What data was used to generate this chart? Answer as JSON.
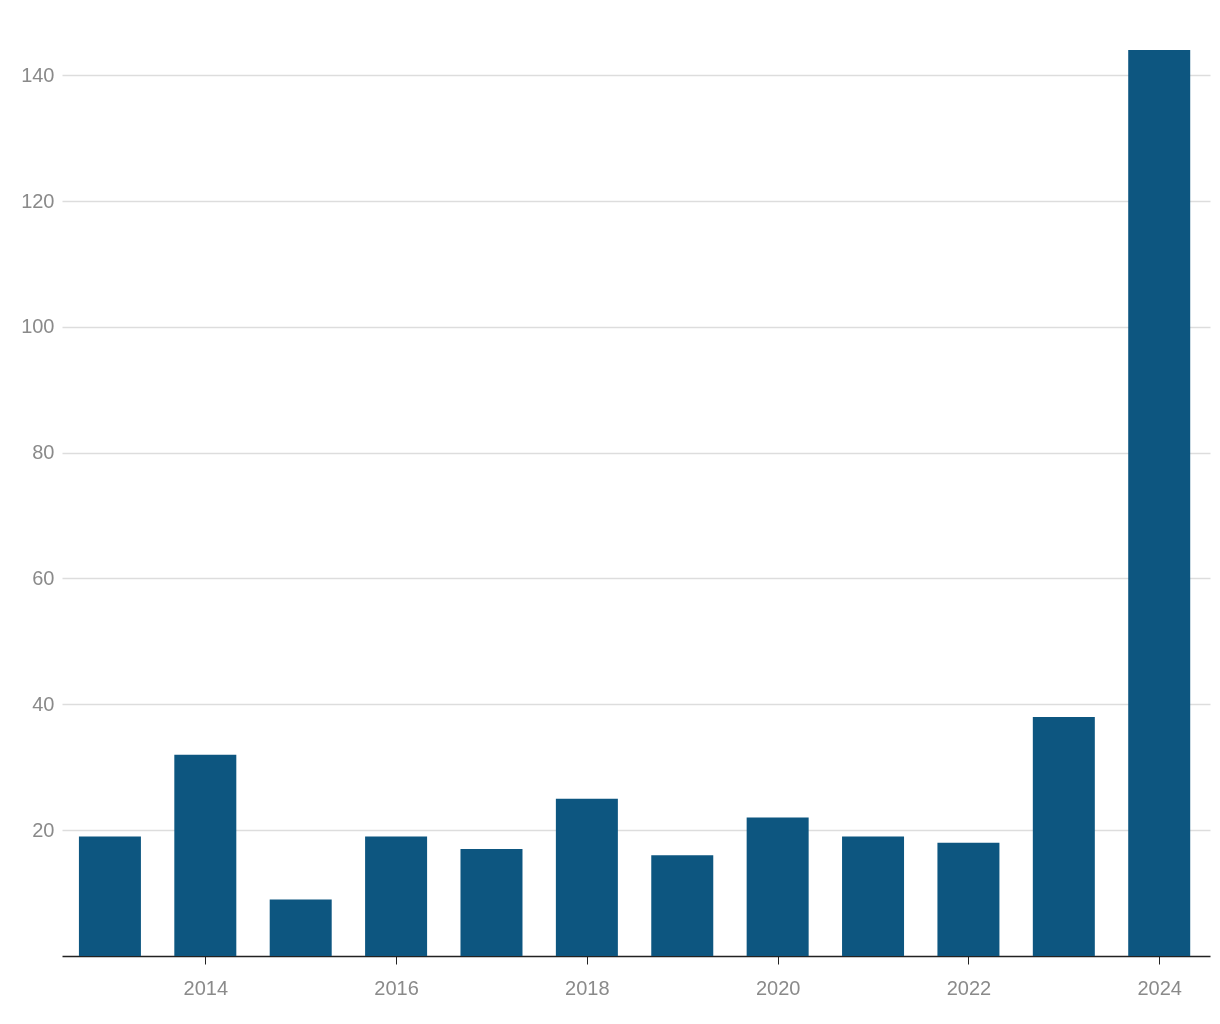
{
  "chart_data": {
    "type": "bar",
    "x": [
      2013,
      2014,
      2015,
      2016,
      2017,
      2018,
      2019,
      2020,
      2021,
      2022,
      2023,
      2024
    ],
    "values": [
      19,
      32,
      9,
      19,
      17,
      25,
      16,
      22,
      19,
      18,
      38,
      144
    ],
    "color": "#0d5680",
    "xlim": [
      2012.55,
      2024.48
    ],
    "xticks": [
      2014,
      2016,
      2018,
      2020,
      2022,
      2024
    ],
    "ylim": [
      0,
      144
    ],
    "yticks": [
      20,
      40,
      60,
      80,
      100,
      120,
      140
    ],
    "grid": "y"
  }
}
